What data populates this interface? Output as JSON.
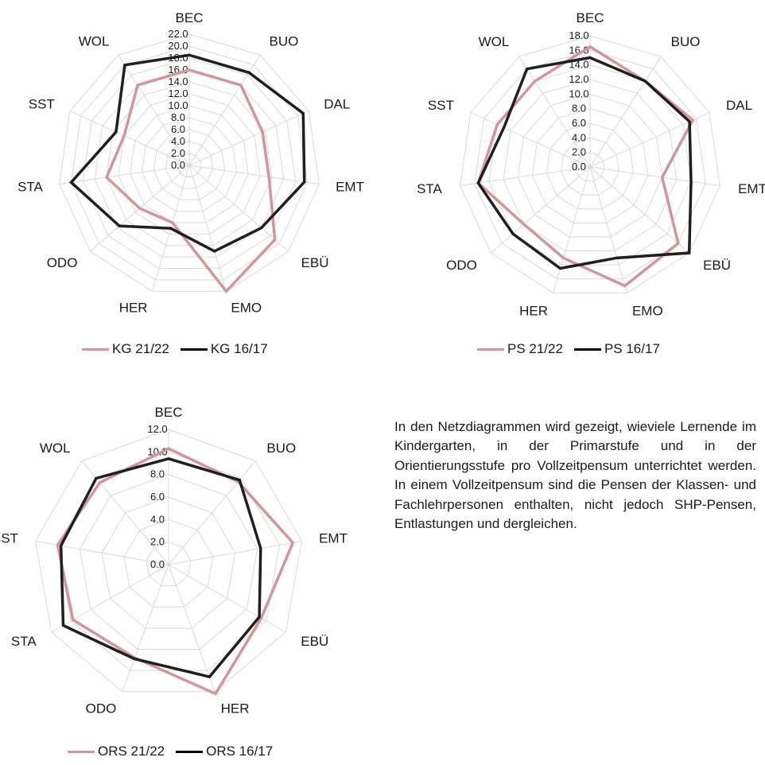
{
  "description": "In den Netzdiagrammen wird gezeigt, wieviele Lernende im Kindergarten, in der Primarstufe und in der Orientierungsstufe pro Vollzeitpensum unterrichtet werden. In einem Vollzeitpensum sind die Pensen der Klassen- und Fachlehrpersonen enthalten, nicht jedoch SHP-Pensen, Entlastungen und dergleichen.",
  "colors": {
    "current": "#d4959a",
    "previous": "#1f1f1f",
    "grid": "#d9d9d9"
  },
  "chart_data": [
    {
      "id": "kg",
      "type": "radar",
      "categories": [
        "BEC",
        "BUO",
        "DAL",
        "EMT",
        "EBÜ",
        "EMO",
        "HER",
        "ODO",
        "STA",
        "SST",
        "WOL"
      ],
      "rlim": [
        0,
        22
      ],
      "ticks": [
        "0.0",
        "2.0",
        "4.0",
        "6.0",
        "8.0",
        "10.0",
        "12.0",
        "14.0",
        "16.0",
        "18.0",
        "20.0",
        "22.0"
      ],
      "tick_values": [
        0,
        2,
        4,
        6,
        8,
        10,
        12,
        14,
        16,
        18,
        20,
        22
      ],
      "series": [
        {
          "name": "KG 21/22",
          "values": [
            16.0,
            16.0,
            13.5,
            13.5,
            19.0,
            22.0,
            10.0,
            11.0,
            14.0,
            12.0,
            16.0
          ]
        },
        {
          "name": "KG 16/17",
          "values": [
            18.5,
            18.5,
            21.0,
            19.5,
            16.0,
            15.0,
            11.0,
            15.5,
            20.0,
            13.5,
            20.0
          ]
        }
      ],
      "legend": "bottom"
    },
    {
      "id": "ps",
      "type": "radar",
      "categories": [
        "BEC",
        "BUO",
        "DAL",
        "EMT",
        "EBÜ",
        "EMO",
        "HER",
        "ODO",
        "STA",
        "SST",
        "WOL"
      ],
      "rlim": [
        0,
        18
      ],
      "ticks": [
        "0.0",
        "2.0",
        "4.0",
        "6.0",
        "8.0",
        "10.0",
        "12.0",
        "14.0",
        "16.0",
        "18.0"
      ],
      "tick_values": [
        0,
        2,
        4,
        6,
        8,
        10,
        12,
        14,
        16,
        18
      ],
      "series": [
        {
          "name": "PS 21/22",
          "values": [
            16.5,
            14.0,
            15.5,
            10.0,
            16.0,
            17.0,
            13.0,
            12.0,
            15.5,
            14.0,
            14.0
          ]
        },
        {
          "name": "PS 16/17",
          "values": [
            15.0,
            14.0,
            15.0,
            14.0,
            18.0,
            13.0,
            14.5,
            14.0,
            15.5,
            13.0,
            16.0
          ]
        }
      ],
      "legend": "bottom"
    },
    {
      "id": "ors",
      "type": "radar",
      "categories": [
        "BEC",
        "BUO",
        "EMT",
        "EBÜ",
        "HER",
        "ODO",
        "STA",
        "SST",
        "WOL"
      ],
      "rlim": [
        0,
        12
      ],
      "ticks": [
        "0.0",
        "2.0",
        "4.0",
        "6.0",
        "8.0",
        "10.0",
        "12.0"
      ],
      "tick_values": [
        0,
        2,
        4,
        6,
        8,
        10,
        12
      ],
      "series": [
        {
          "name": "ORS 21/22",
          "values": [
            10.3,
            9.6,
            11.2,
            9.5,
            12.2,
            8.8,
            9.8,
            10.0,
            9.5
          ]
        },
        {
          "name": "ORS 16/17",
          "values": [
            9.4,
            9.8,
            8.3,
            9.3,
            10.6,
            8.9,
            10.8,
            9.7,
            10.0
          ]
        }
      ],
      "legend": "bottom"
    }
  ]
}
